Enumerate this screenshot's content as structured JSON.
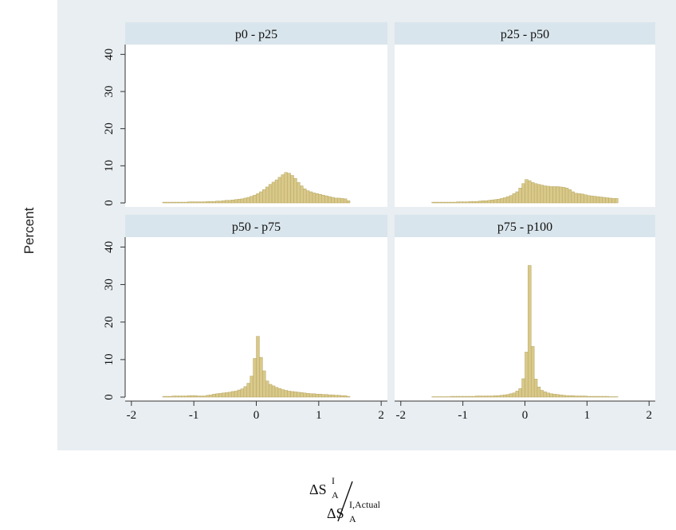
{
  "figure": {
    "ylabel": "Percent",
    "xlabel": {
      "numerator_base": "ΔS",
      "numerator_sup": "I",
      "numerator_sub": "A",
      "denominator_base": "ΔS",
      "denominator_sup": "I,Actual",
      "denominator_sub": "A"
    },
    "colors": {
      "plot_region_bg": "#e8eef1",
      "panel_bg": "#ffffff",
      "strip_bg": "#d9e5ec",
      "bar_fill": "#d8c98a",
      "bar_stroke": "#b8a560"
    }
  },
  "chart_data": [
    {
      "type": "bar",
      "title": "p0 - p25",
      "xlim": [
        -2.1,
        2.1
      ],
      "ylim": [
        0,
        42
      ],
      "x_ticks": [
        "-2",
        "-1",
        "0",
        "1",
        "2"
      ],
      "y_ticks": [
        "0",
        "10",
        "20",
        "30",
        "40"
      ],
      "bin_width": 0.05,
      "bin_start": -1.5,
      "values": [
        0.2,
        0.2,
        0.2,
        0.2,
        0.2,
        0.2,
        0.2,
        0.2,
        0.3,
        0.3,
        0.3,
        0.3,
        0.3,
        0.3,
        0.4,
        0.4,
        0.4,
        0.5,
        0.5,
        0.6,
        0.7,
        0.7,
        0.8,
        0.9,
        1.0,
        1.1,
        1.3,
        1.5,
        1.8,
        2.1,
        2.5,
        3.0,
        3.6,
        4.3,
        5.0,
        5.6,
        6.2,
        6.9,
        7.6,
        8.2,
        8.0,
        7.4,
        6.6,
        5.5,
        4.6,
        3.8,
        3.3,
        3.0,
        2.7,
        2.5,
        2.3,
        2.1,
        1.9,
        1.7,
        1.5,
        1.3,
        1.3,
        1.2,
        1.1,
        0.6
      ]
    },
    {
      "type": "bar",
      "title": "p25 - p50",
      "xlim": [
        -2.1,
        2.1
      ],
      "ylim": [
        0,
        42
      ],
      "x_ticks": [
        "-2",
        "-1",
        "0",
        "1",
        "2"
      ],
      "y_ticks": [
        "0",
        "10",
        "20",
        "30",
        "40"
      ],
      "bin_width": 0.05,
      "bin_start": -1.5,
      "values": [
        0.2,
        0.2,
        0.2,
        0.2,
        0.2,
        0.2,
        0.2,
        0.2,
        0.3,
        0.3,
        0.3,
        0.3,
        0.4,
        0.4,
        0.4,
        0.5,
        0.6,
        0.6,
        0.7,
        0.8,
        0.9,
        1.0,
        1.2,
        1.4,
        1.7,
        2.0,
        2.5,
        3.0,
        4.0,
        5.2,
        6.3,
        6.0,
        5.5,
        5.2,
        5.0,
        4.8,
        4.6,
        4.5,
        4.4,
        4.4,
        4.4,
        4.3,
        4.2,
        4.0,
        3.6,
        3.0,
        2.6,
        2.5,
        2.4,
        2.2,
        2.0,
        1.9,
        1.8,
        1.7,
        1.6,
        1.5,
        1.4,
        1.3,
        1.2,
        1.2
      ]
    },
    {
      "type": "bar",
      "title": "p50 - p75",
      "xlim": [
        -2.1,
        2.1
      ],
      "ylim": [
        0,
        42
      ],
      "x_ticks": [
        "-2",
        "-1",
        "0",
        "1",
        "2"
      ],
      "y_ticks": [
        "0",
        "10",
        "20",
        "30",
        "40"
      ],
      "bin_width": 0.05,
      "bin_start": -1.5,
      "values": [
        0.2,
        0.2,
        0.2,
        0.3,
        0.3,
        0.3,
        0.3,
        0.3,
        0.4,
        0.4,
        0.4,
        0.3,
        0.3,
        0.3,
        0.5,
        0.6,
        0.8,
        0.9,
        1.0,
        1.1,
        1.2,
        1.3,
        1.5,
        1.6,
        1.9,
        2.2,
        2.8,
        3.7,
        5.6,
        10.3,
        16.2,
        10.6,
        7.0,
        4.3,
        3.4,
        3.0,
        2.6,
        2.3,
        2.0,
        1.8,
        1.6,
        1.5,
        1.4,
        1.3,
        1.2,
        1.1,
        1.0,
        0.9,
        0.9,
        0.8,
        0.8,
        0.7,
        0.7,
        0.6,
        0.6,
        0.5,
        0.5,
        0.4,
        0.4,
        0.2
      ]
    },
    {
      "type": "bar",
      "title": "p75 - p100",
      "xlim": [
        -2.1,
        2.1
      ],
      "ylim": [
        0,
        42
      ],
      "x_ticks": [
        "-2",
        "-1",
        "0",
        "1",
        "2"
      ],
      "y_ticks": [
        "0",
        "10",
        "20",
        "30",
        "40"
      ],
      "bin_width": 0.05,
      "bin_start": -1.5,
      "values": [
        0.1,
        0.1,
        0.1,
        0.1,
        0.1,
        0.1,
        0.2,
        0.2,
        0.2,
        0.2,
        0.2,
        0.2,
        0.2,
        0.2,
        0.3,
        0.3,
        0.3,
        0.3,
        0.3,
        0.3,
        0.4,
        0.4,
        0.5,
        0.6,
        0.7,
        0.9,
        1.1,
        1.6,
        2.3,
        4.9,
        12.0,
        35.1,
        13.5,
        4.8,
        2.7,
        1.8,
        1.4,
        1.1,
        0.9,
        0.8,
        0.7,
        0.6,
        0.5,
        0.4,
        0.4,
        0.4,
        0.3,
        0.3,
        0.3,
        0.3,
        0.2,
        0.2,
        0.2,
        0.2,
        0.2,
        0.2,
        0.2,
        0.1,
        0.1,
        0.1
      ]
    }
  ]
}
